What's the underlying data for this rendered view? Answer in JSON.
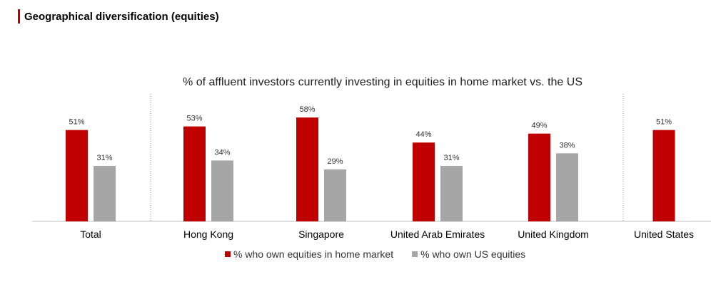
{
  "header": {
    "title": "Geographical diversification (equities)",
    "accent_color": "#c00000"
  },
  "chart_data": {
    "type": "bar",
    "title": "% of affluent investors currently investing in equities in home market vs. the US",
    "categories": [
      "Total",
      "Hong Kong",
      "Singapore",
      "United Arab Emirates",
      "United Kingdom",
      "United States"
    ],
    "series": [
      {
        "name": "% who own equities in home market",
        "color": "#c00000",
        "values": [
          51,
          53,
          58,
          44,
          49,
          51
        ],
        "labels": [
          "51%",
          "53%",
          "58%",
          "44%",
          "49%",
          "51%"
        ]
      },
      {
        "name": "% who own US equities",
        "color": "#a6a6a6",
        "values": [
          31,
          34,
          29,
          31,
          38,
          null
        ],
        "labels": [
          "31%",
          "34%",
          "29%",
          "31%",
          "38%",
          null
        ]
      }
    ],
    "ylim": [
      0,
      58
    ],
    "grid": false,
    "legend_position": "bottom",
    "group_separators": "dotted lines after Total and before United States"
  }
}
